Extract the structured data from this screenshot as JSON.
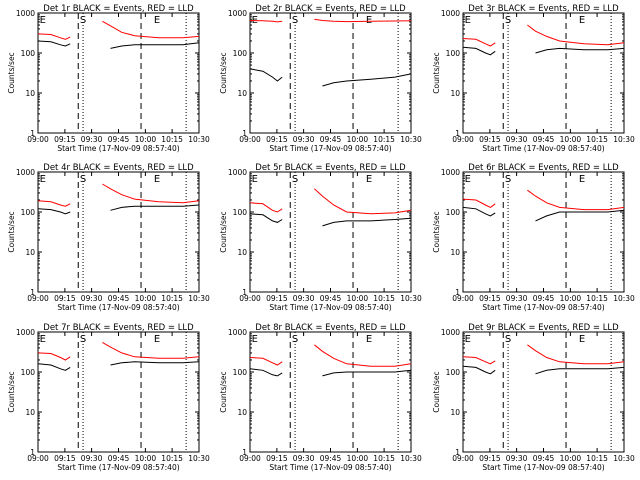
{
  "colors": {
    "events": "#000000",
    "lld": "#ff0000",
    "axis": "#000000"
  },
  "common": {
    "ylabel": "Counts/sec",
    "xlabel": "Start Time (17-Nov-09 08:57:40)",
    "xticks": [
      "09:00",
      "09:15",
      "09:30",
      "09:45",
      "10:00",
      "10:15",
      "10:30"
    ],
    "yticks": [
      "1",
      "10",
      "100",
      "1000"
    ],
    "markers": [
      "E",
      "S",
      "E"
    ]
  },
  "chart_data": [
    {
      "type": "line",
      "title": "Det 1r BLACK = Events, RED = LLD",
      "xlabel": "Start Time (17-Nov-09 08:57:40)",
      "ylabel": "Counts/sec",
      "yscale": "log",
      "ylim": [
        1,
        1000
      ],
      "series": [
        {
          "name": "Events",
          "x": [
            0,
            8,
            14,
            17,
            20,
            28,
            45,
            52,
            60,
            75,
            90,
            100
          ],
          "y": [
            200,
            190,
            160,
            150,
            170,
            null,
            130,
            150,
            160,
            160,
            160,
            180
          ]
        },
        {
          "name": "LLD",
          "x": [
            0,
            8,
            14,
            17,
            20,
            28,
            40,
            45,
            52,
            60,
            75,
            90,
            100
          ],
          "y": [
            300,
            290,
            240,
            220,
            250,
            null,
            620,
            480,
            330,
            270,
            240,
            240,
            260
          ]
        }
      ]
    },
    {
      "type": "line",
      "title": "Det 2r BLACK = Events, RED = LLD",
      "xlabel": "Start Time (17-Nov-09 08:57:40)",
      "ylabel": "Counts/sec",
      "yscale": "log",
      "ylim": [
        1,
        1000
      ],
      "series": [
        {
          "name": "Events",
          "x": [
            0,
            8,
            14,
            17,
            20,
            28,
            45,
            52,
            60,
            75,
            90,
            100
          ],
          "y": [
            40,
            35,
            25,
            20,
            25,
            null,
            15,
            18,
            20,
            22,
            25,
            30
          ]
        },
        {
          "name": "LLD",
          "x": [
            0,
            8,
            14,
            17,
            20,
            28,
            40,
            45,
            52,
            60,
            75,
            90,
            100
          ],
          "y": [
            650,
            640,
            620,
            600,
            620,
            null,
            700,
            650,
            620,
            610,
            620,
            630,
            640
          ]
        }
      ]
    },
    {
      "type": "line",
      "title": "Det 3r BLACK = Events, RED = LLD",
      "xlabel": "Start Time (17-Nov-09 08:57:40)",
      "ylabel": "Counts/sec",
      "yscale": "log",
      "ylim": [
        1,
        1000
      ],
      "series": [
        {
          "name": "Events",
          "x": [
            0,
            8,
            14,
            17,
            20,
            28,
            45,
            52,
            60,
            75,
            90,
            100
          ],
          "y": [
            140,
            130,
            100,
            90,
            110,
            null,
            100,
            120,
            130,
            120,
            120,
            130
          ]
        },
        {
          "name": "LLD",
          "x": [
            0,
            8,
            14,
            17,
            20,
            28,
            40,
            45,
            52,
            60,
            75,
            90,
            100
          ],
          "y": [
            230,
            220,
            170,
            150,
            180,
            null,
            500,
            350,
            260,
            200,
            170,
            160,
            180
          ]
        }
      ]
    },
    {
      "type": "line",
      "title": "Det 4r BLACK = Events, RED = LLD",
      "xlabel": "Start Time (17-Nov-09 08:57:40)",
      "ylabel": "Counts/sec",
      "yscale": "log",
      "ylim": [
        1,
        1000
      ],
      "series": [
        {
          "name": "Events",
          "x": [
            0,
            8,
            14,
            17,
            20,
            28,
            45,
            52,
            60,
            75,
            90,
            100
          ],
          "y": [
            120,
            115,
            100,
            90,
            100,
            null,
            110,
            130,
            140,
            140,
            140,
            150
          ]
        },
        {
          "name": "LLD",
          "x": [
            0,
            8,
            14,
            17,
            20,
            28,
            40,
            45,
            52,
            60,
            75,
            90,
            100
          ],
          "y": [
            190,
            180,
            150,
            140,
            160,
            null,
            500,
            380,
            270,
            210,
            180,
            170,
            190
          ]
        }
      ]
    },
    {
      "type": "line",
      "title": "Det 5r BLACK = Events, RED = LLD",
      "xlabel": "Start Time (17-Nov-09 08:57:40)",
      "ylabel": "Counts/sec",
      "yscale": "log",
      "ylim": [
        1,
        1000
      ],
      "series": [
        {
          "name": "Events",
          "x": [
            0,
            8,
            14,
            17,
            20,
            28,
            45,
            52,
            60,
            75,
            90,
            100
          ],
          "y": [
            90,
            85,
            60,
            55,
            65,
            null,
            45,
            55,
            60,
            60,
            65,
            70
          ]
        },
        {
          "name": "LLD",
          "x": [
            0,
            8,
            14,
            17,
            20,
            28,
            40,
            45,
            52,
            60,
            75,
            90,
            100
          ],
          "y": [
            170,
            160,
            110,
            100,
            120,
            null,
            380,
            250,
            150,
            100,
            90,
            95,
            110
          ]
        }
      ]
    },
    {
      "type": "line",
      "title": "Det 6r BLACK = Events, RED = LLD",
      "xlabel": "Start Time (17-Nov-09 08:57:40)",
      "ylabel": "Counts/sec",
      "yscale": "log",
      "ylim": [
        1,
        1000
      ],
      "series": [
        {
          "name": "Events",
          "x": [
            0,
            8,
            14,
            17,
            20,
            28,
            45,
            52,
            60,
            75,
            90,
            100
          ],
          "y": [
            130,
            120,
            90,
            80,
            95,
            null,
            60,
            80,
            100,
            100,
            100,
            110
          ]
        },
        {
          "name": "LLD",
          "x": [
            0,
            8,
            14,
            17,
            20,
            28,
            40,
            45,
            52,
            60,
            75,
            90,
            100
          ],
          "y": [
            210,
            200,
            150,
            130,
            160,
            null,
            350,
            250,
            170,
            130,
            115,
            115,
            130
          ]
        }
      ]
    },
    {
      "type": "line",
      "title": "Det 7r BLACK = Events, RED = LLD",
      "xlabel": "Start Time (17-Nov-09 08:57:40)",
      "ylabel": "Counts/sec",
      "yscale": "log",
      "ylim": [
        1,
        1000
      ],
      "series": [
        {
          "name": "Events",
          "x": [
            0,
            8,
            14,
            17,
            20,
            28,
            45,
            52,
            60,
            75,
            90,
            100
          ],
          "y": [
            160,
            150,
            120,
            110,
            130,
            null,
            150,
            170,
            180,
            170,
            170,
            180
          ]
        },
        {
          "name": "LLD",
          "x": [
            0,
            8,
            14,
            17,
            20,
            28,
            40,
            45,
            52,
            60,
            75,
            90,
            100
          ],
          "y": [
            300,
            290,
            230,
            200,
            240,
            null,
            550,
            420,
            300,
            240,
            220,
            220,
            240
          ]
        }
      ]
    },
    {
      "type": "line",
      "title": "Det 8r BLACK = Events, RED = LLD",
      "xlabel": "Start Time (17-Nov-09 08:57:40)",
      "ylabel": "Counts/sec",
      "yscale": "log",
      "ylim": [
        1,
        1000
      ],
      "series": [
        {
          "name": "Events",
          "x": [
            0,
            8,
            14,
            17,
            20,
            28,
            45,
            52,
            60,
            75,
            90,
            100
          ],
          "y": [
            120,
            110,
            85,
            80,
            95,
            null,
            80,
            95,
            100,
            100,
            100,
            110
          ]
        },
        {
          "name": "LLD",
          "x": [
            0,
            8,
            14,
            17,
            20,
            28,
            40,
            45,
            52,
            60,
            75,
            90,
            100
          ],
          "y": [
            230,
            220,
            170,
            150,
            180,
            null,
            480,
            330,
            220,
            160,
            140,
            140,
            160
          ]
        }
      ]
    },
    {
      "type": "line",
      "title": "Det 9r BLACK = Events, RED = LLD",
      "xlabel": "Start Time (17-Nov-09 08:57:40)",
      "ylabel": "Counts/sec",
      "yscale": "log",
      "ylim": [
        1,
        1000
      ],
      "series": [
        {
          "name": "Events",
          "x": [
            0,
            8,
            14,
            17,
            20,
            28,
            45,
            52,
            60,
            75,
            90,
            100
          ],
          "y": [
            140,
            130,
            100,
            90,
            110,
            null,
            90,
            110,
            120,
            120,
            120,
            130
          ]
        },
        {
          "name": "LLD",
          "x": [
            0,
            8,
            14,
            17,
            20,
            28,
            40,
            45,
            52,
            60,
            75,
            90,
            100
          ],
          "y": [
            240,
            230,
            180,
            160,
            190,
            null,
            480,
            340,
            230,
            180,
            160,
            160,
            180
          ]
        }
      ]
    }
  ]
}
